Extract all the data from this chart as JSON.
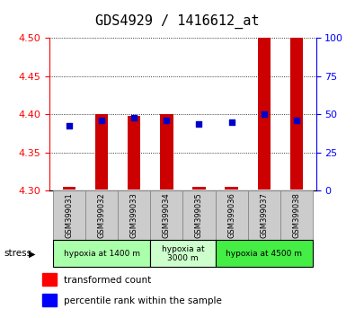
{
  "title": "GDS4929 / 1416612_at",
  "samples": [
    "GSM399031",
    "GSM399032",
    "GSM399033",
    "GSM399034",
    "GSM399035",
    "GSM399036",
    "GSM399037",
    "GSM399038"
  ],
  "bar_bottom": [
    4.302,
    4.302,
    4.302,
    4.302,
    4.302,
    4.302,
    4.302,
    4.302
  ],
  "bar_top": [
    4.305,
    4.4,
    4.398,
    4.4,
    4.305,
    4.305,
    4.5,
    4.5
  ],
  "blue_y": [
    4.385,
    4.392,
    4.396,
    4.392,
    4.387,
    4.39,
    4.4,
    4.392
  ],
  "ylim_left": [
    4.3,
    4.5
  ],
  "ylim_right": [
    0,
    100
  ],
  "yticks_left": [
    4.3,
    4.35,
    4.4,
    4.45,
    4.5
  ],
  "yticks_right": [
    0,
    25,
    50,
    75,
    100
  ],
  "bar_color": "#cc0000",
  "dot_color": "#0000cc",
  "groups": [
    {
      "label": "hypoxia at 1400 m",
      "start": 0,
      "end": 3,
      "color": "#aaffaa"
    },
    {
      "label": "hypoxia at\n3000 m",
      "start": 3,
      "end": 5,
      "color": "#ccffcc"
    },
    {
      "label": "hypoxia at 4500 m",
      "start": 5,
      "end": 8,
      "color": "#44ee44"
    }
  ],
  "legend_red": "transformed count",
  "legend_blue": "percentile rank within the sample",
  "stress_label": "stress",
  "title_fontsize": 11,
  "tick_fontsize": 8,
  "label_fontsize": 7.5
}
